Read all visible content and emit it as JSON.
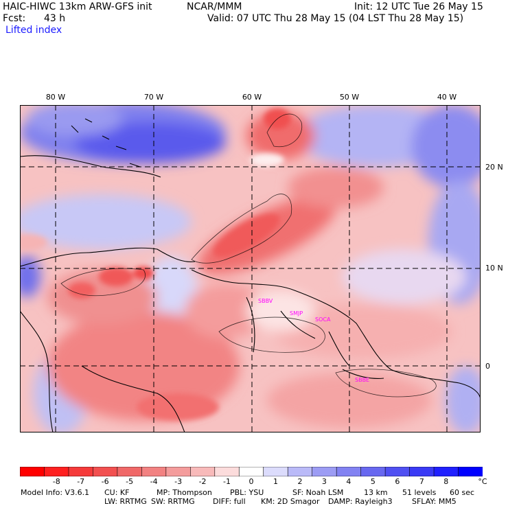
{
  "header": {
    "title": "HAIC-HIWC 13km ARW-GFS init",
    "org": "NCAR/MMM",
    "init": "Init: 12 UTC Tue 26 May 15",
    "fcst_label": "Fcst:",
    "fcst_value": "43 h",
    "valid": "Valid: 07 UTC Thu 28 May 15 (04 LST Thu 28 May 15)",
    "field": "Lifted index"
  },
  "map": {
    "lon_labels": [
      "80 W",
      "70 W",
      "60 W",
      "50 W",
      "40 W"
    ],
    "lat_labels": [
      "20 N",
      "10 N",
      "0"
    ],
    "stations": [
      "SBBV",
      "SMJP",
      "SOCA",
      "SBBE"
    ]
  },
  "colorbar": {
    "ticks": [
      "-8",
      "-7",
      "-6",
      "-5",
      "-4",
      "-3",
      "-2",
      "-1",
      "0",
      "1",
      "2",
      "3",
      "4",
      "5",
      "6",
      "7",
      "8"
    ],
    "unit": "°C",
    "colors": [
      "#ff0000",
      "#ff2020",
      "#f53a3a",
      "#f25050",
      "#f06868",
      "#f28282",
      "#f49c9c",
      "#f8baba",
      "#fcdcdc",
      "#ffffff",
      "#dcdcfc",
      "#babaf8",
      "#9c9cf4",
      "#8282f2",
      "#6868f0",
      "#5050f2",
      "#3a3af5",
      "#2020ff",
      "#0000ff"
    ]
  },
  "footer": {
    "line1": [
      {
        "label": "Model Info: V3.6.1"
      },
      {
        "label": "CU: KF"
      },
      {
        "label": "MP: Thompson"
      },
      {
        "label": "PBL: YSU"
      },
      {
        "label": "SF: Noah LSM"
      },
      {
        "label": "13 km"
      },
      {
        "label": "51 levels"
      },
      {
        "label": "60 sec"
      }
    ],
    "line2": [
      {
        "label": "LW: RRTMG"
      },
      {
        "label": "SW: RRTMG"
      },
      {
        "label": "DIFF: full"
      },
      {
        "label": "KM: 2D Smagor"
      },
      {
        "label": "DAMP: Rayleigh3"
      },
      {
        "label": "SFLAY: MM5"
      }
    ]
  }
}
